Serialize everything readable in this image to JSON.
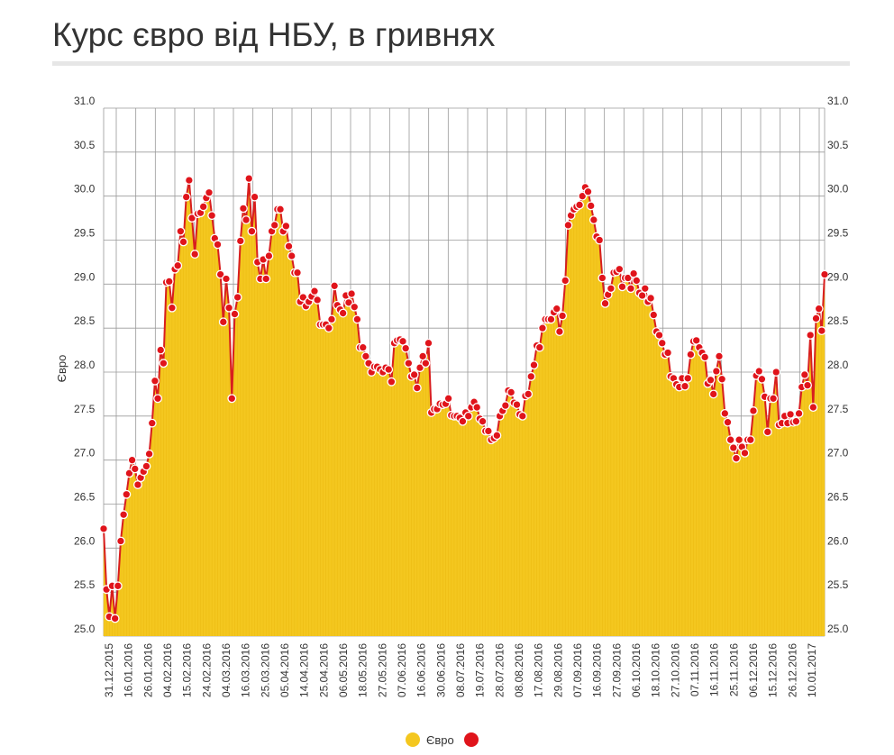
{
  "title": "Курс євро від НБУ, в гривнях",
  "colors": {
    "fill": "#f4c71f",
    "fill_edge": "#e9b80e",
    "line": "#d81e1e",
    "marker": "#e0141b",
    "grid": "#9a9a9a"
  },
  "chart_data": {
    "type": "area",
    "ylabel": "Євро",
    "ylim": [
      25.0,
      31.0
    ],
    "ytick_labels": [
      "25.0",
      "25.5",
      "26.0",
      "26.5",
      "27.0",
      "27.5",
      "28.0",
      "28.5",
      "29.0",
      "29.5",
      "30.0",
      "30.5",
      "31.0"
    ],
    "x_tick_labels": [
      "31.12.2015",
      "16.01.2016",
      "26.01.2016",
      "04.02.2016",
      "15.02.2016",
      "24.02.2016",
      "04.03.2016",
      "16.03.2016",
      "25.03.2016",
      "05.04.2016",
      "14.04.2016",
      "25.04.2016",
      "06.05.2016",
      "18.05.2016",
      "27.05.2016",
      "07.06.2016",
      "16.06.2016",
      "30.06.2016",
      "08.07.2016",
      "19.07.2016",
      "28.07.2016",
      "08.08.2016",
      "17.08.2016",
      "29.08.2016",
      "07.09.2016",
      "16.09.2016",
      "27.09.2016",
      "06.10.2016",
      "18.10.2016",
      "27.10.2016",
      "07.11.2016",
      "16.11.2016",
      "25.11.2016",
      "06.12.2016",
      "15.12.2016",
      "26.12.2016",
      "10.01.2017"
    ],
    "grid": true,
    "legend": {
      "position": "bottom-center",
      "entries": [
        "Євро"
      ]
    },
    "series": [
      {
        "name": "Євро",
        "values": [
          26.22,
          25.53,
          25.22,
          25.57,
          25.2,
          25.57,
          26.08,
          26.38,
          26.61,
          26.85,
          27.0,
          26.9,
          26.72,
          26.8,
          26.87,
          26.93,
          27.07,
          27.42,
          27.9,
          27.7,
          28.25,
          28.1,
          29.02,
          29.03,
          28.73,
          29.17,
          29.21,
          29.6,
          29.48,
          29.99,
          30.18,
          29.75,
          29.34,
          29.8,
          29.81,
          29.88,
          29.98,
          30.04,
          29.78,
          29.52,
          29.45,
          29.11,
          28.57,
          29.06,
          28.73,
          27.7,
          28.66,
          28.85,
          29.49,
          29.86,
          29.73,
          30.2,
          29.6,
          29.99,
          29.25,
          29.06,
          29.28,
          29.06,
          29.32,
          29.6,
          29.67,
          29.85,
          29.85,
          29.6,
          29.66,
          29.43,
          29.32,
          29.13,
          29.13,
          28.8,
          28.85,
          28.75,
          28.8,
          28.86,
          28.92,
          28.82,
          28.54,
          28.54,
          28.54,
          28.5,
          28.6,
          28.98,
          28.76,
          28.71,
          28.67,
          28.87,
          28.79,
          28.89,
          28.74,
          28.6,
          28.28,
          28.28,
          28.18,
          28.1,
          28.0,
          28.06,
          28.06,
          28.03,
          28.0,
          28.05,
          28.03,
          27.89,
          28.33,
          28.36,
          28.37,
          28.35,
          28.27,
          28.1,
          27.95,
          27.97,
          27.82,
          28.05,
          28.18,
          28.1,
          28.33,
          27.54,
          27.58,
          27.58,
          27.64,
          27.63,
          27.64,
          27.7,
          27.51,
          27.5,
          27.5,
          27.48,
          27.44,
          27.54,
          27.5,
          27.6,
          27.66,
          27.6,
          27.47,
          27.44,
          27.33,
          27.33,
          27.23,
          27.25,
          27.28,
          27.5,
          27.56,
          27.62,
          27.79,
          27.77,
          27.65,
          27.63,
          27.52,
          27.5,
          27.73,
          27.75,
          27.95,
          28.08,
          28.3,
          28.28,
          28.5,
          28.6,
          28.6,
          28.6,
          28.68,
          28.72,
          28.46,
          28.64,
          29.04,
          29.67,
          29.78,
          29.85,
          29.88,
          29.9,
          30.0,
          30.1,
          30.05,
          29.89,
          29.73,
          29.54,
          29.5,
          29.07,
          28.78,
          28.88,
          28.95,
          29.13,
          29.14,
          29.17,
          28.97,
          29.07,
          29.07,
          28.95,
          29.12,
          29.04,
          28.9,
          28.87,
          28.95,
          28.8,
          28.84,
          28.65,
          28.46,
          28.42,
          28.33,
          28.2,
          28.22,
          27.95,
          27.93,
          27.86,
          27.83,
          27.93,
          27.84,
          27.93,
          28.2,
          28.35,
          28.36,
          28.28,
          28.22,
          28.17,
          27.87,
          27.91,
          27.75,
          28.01,
          28.18,
          27.92,
          27.53,
          27.43,
          27.23,
          27.14,
          27.02,
          27.23,
          27.15,
          27.08,
          27.23,
          27.23,
          27.56,
          27.96,
          28.01,
          27.92,
          27.72,
          27.32,
          27.7,
          27.7,
          28.0,
          27.4,
          27.42,
          27.5,
          27.42,
          27.52,
          27.43,
          27.44,
          27.53,
          27.83,
          27.97,
          27.85,
          28.42,
          27.6,
          28.61,
          28.72,
          28.47,
          29.11
        ]
      }
    ]
  }
}
